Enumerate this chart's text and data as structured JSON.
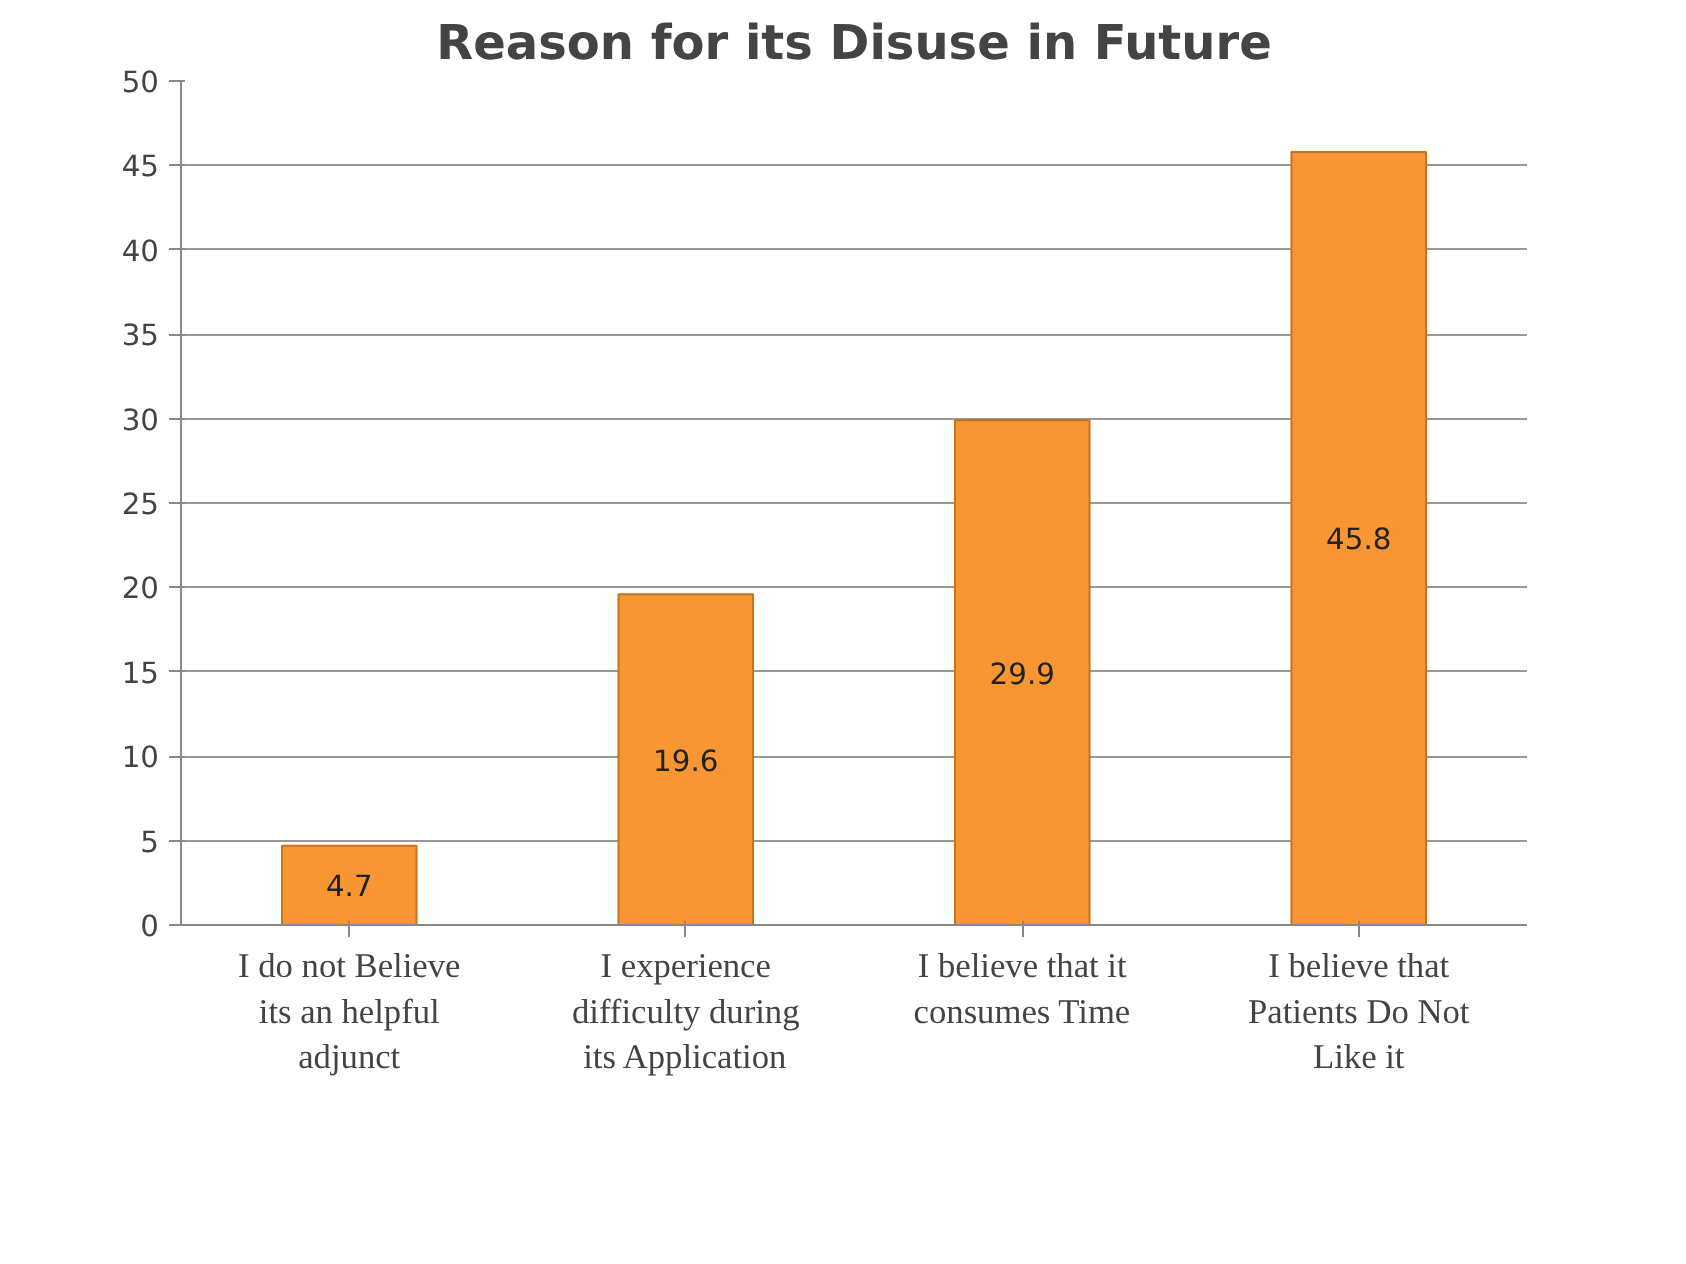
{
  "chart_data": {
    "type": "bar",
    "title": "Reason for its Disuse in Future",
    "categories": [
      "I do not Believe its an helpful adjunct",
      "I experience difficulty during its Application",
      "I believe that it consumes Time",
      "I believe that Patients Do Not Like it"
    ],
    "values": [
      4.7,
      19.6,
      29.9,
      45.8
    ],
    "color": "#f79632",
    "ylim": [
      0,
      50
    ],
    "yticks": [
      0,
      5,
      10,
      15,
      20,
      25,
      30,
      35,
      40,
      45,
      50
    ],
    "grid": "y",
    "data_labels": true
  }
}
